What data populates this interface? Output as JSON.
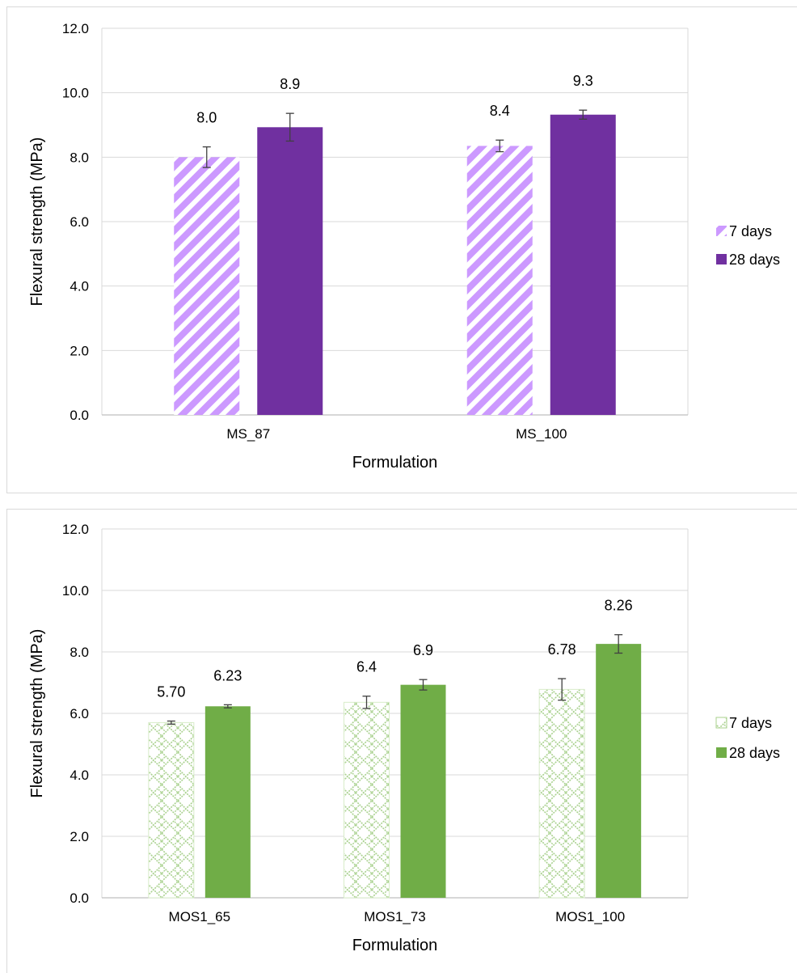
{
  "chart_data": [
    {
      "type": "bar",
      "categories": [
        "MS_87",
        "MS_100"
      ],
      "series": [
        {
          "name": "7 days",
          "values": [
            8.0,
            8.35
          ],
          "error": [
            0.32,
            0.18
          ],
          "labels": [
            "8.0",
            "8.4"
          ],
          "color": "#cc99ff",
          "pattern": "diagonal-stripes"
        },
        {
          "name": "28 days",
          "values": [
            8.93,
            9.32
          ],
          "error": [
            0.43,
            0.14
          ],
          "labels": [
            "8.9",
            "9.3"
          ],
          "color": "#7030a0",
          "pattern": "solid"
        }
      ],
      "xlabel": "Formulation",
      "ylabel": "Flexural strength (MPa)",
      "ylim": [
        0,
        12
      ],
      "yticks": [
        "0.0",
        "2.0",
        "4.0",
        "6.0",
        "8.0",
        "10.0",
        "12.0"
      ],
      "grid": true,
      "legend": "right"
    },
    {
      "type": "bar",
      "categories": [
        "MOS1_65",
        "MOS1_73",
        "MOS1_100"
      ],
      "series": [
        {
          "name": "7 days",
          "values": [
            5.7,
            6.36,
            6.78
          ],
          "error": [
            0.05,
            0.2,
            0.35
          ],
          "labels": [
            "5.70",
            "6.4",
            "6.78"
          ],
          "color": "#a9d18e",
          "pattern": "lattice"
        },
        {
          "name": "28 days",
          "values": [
            6.23,
            6.93,
            8.26
          ],
          "error": [
            0.05,
            0.17,
            0.3
          ],
          "labels": [
            "6.23",
            "6.9",
            "8.26"
          ],
          "color": "#70ad47",
          "pattern": "solid"
        }
      ],
      "xlabel": "Formulation",
      "ylabel": "Flexural strength (MPa)",
      "ylim": [
        0,
        12
      ],
      "yticks": [
        "0.0",
        "2.0",
        "4.0",
        "6.0",
        "8.0",
        "10.0",
        "12.0"
      ],
      "grid": true,
      "legend": "right"
    }
  ]
}
